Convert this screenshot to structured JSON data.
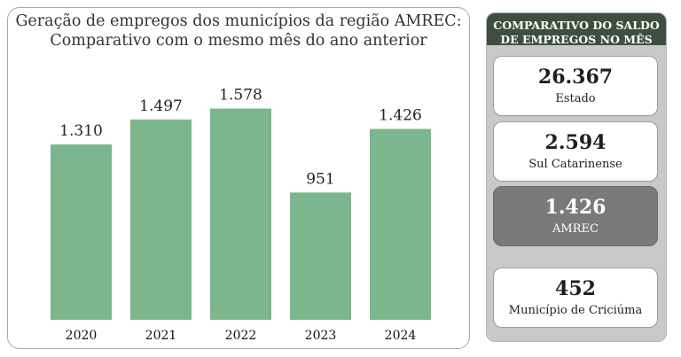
{
  "chart_data": {
    "type": "bar",
    "title_line1": "Geração de empregos dos municípios da região AMREC:",
    "title_line2": "Comparativo com o mesmo mês do ano anterior",
    "categories": [
      "2020",
      "2021",
      "2022",
      "2023",
      "2024"
    ],
    "values": [
      1310,
      1497,
      1578,
      951,
      1426
    ],
    "value_labels": [
      "1.310",
      "1.497",
      "1.578",
      "951",
      "1.426"
    ],
    "ylim": [
      0,
      2330
    ],
    "bar_color": "#7bb68e",
    "grid": false,
    "xlabel": "",
    "ylabel": ""
  },
  "side_panel": {
    "title_line1": "COMPARATIVO DO SALDO",
    "title_line2": "DE EMPREGOS NO MÊS",
    "header_color": "#3f4f3f",
    "cards": [
      {
        "value": "26.367",
        "label": "Estado"
      },
      {
        "value": "2.594",
        "label": "Sul Catarinense"
      },
      {
        "value": "1.426",
        "label": "AMREC",
        "highlight": true
      },
      {
        "value": "452",
        "label": "Município de Criciúma"
      }
    ]
  }
}
